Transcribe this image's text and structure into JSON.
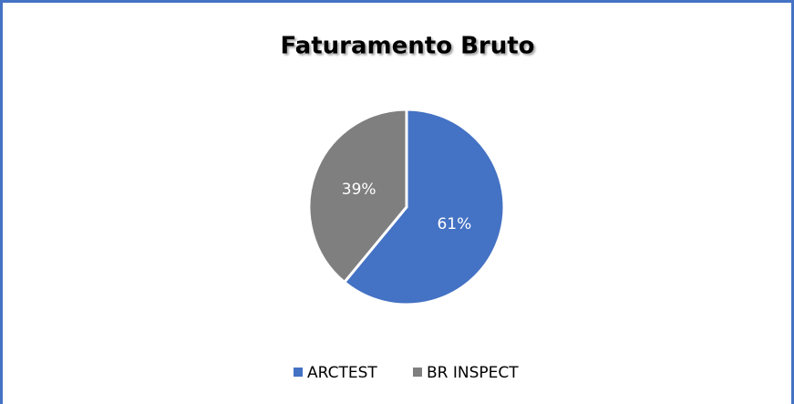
{
  "chart_data": {
    "type": "pie",
    "title": "Faturamento Bruto",
    "categories": [
      "ARCTEST",
      "BR INSPECT"
    ],
    "values": [
      61,
      39
    ],
    "value_labels": [
      "61%",
      "39%"
    ],
    "colors": [
      "#4472c4",
      "#7f7f7f"
    ],
    "legend": "bottom"
  }
}
